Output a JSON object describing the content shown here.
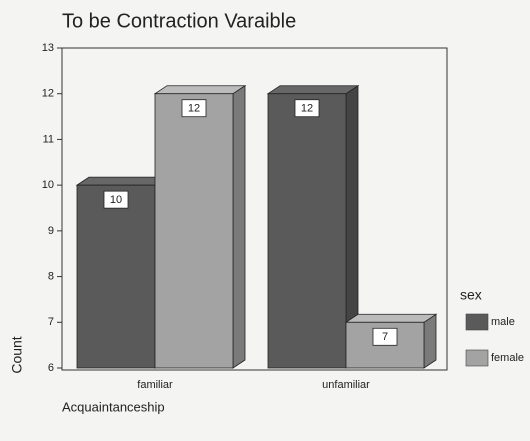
{
  "chart_data": {
    "type": "bar",
    "title": "To be Contraction Varaible",
    "x_label": "Acquaintanceship",
    "y_label": "Count",
    "legend_title": "sex",
    "categories": [
      "familiar",
      "unfamiliar"
    ],
    "series": [
      {
        "name": "male",
        "color": "#5a5a5a",
        "values": [
          10,
          12
        ]
      },
      {
        "name": "female",
        "color": "#a3a3a3",
        "values": [
          12,
          7
        ]
      }
    ],
    "ylim": [
      6,
      13
    ],
    "yticks": [
      6,
      7,
      8,
      9,
      10,
      11,
      12,
      13
    ],
    "legend": "right"
  }
}
